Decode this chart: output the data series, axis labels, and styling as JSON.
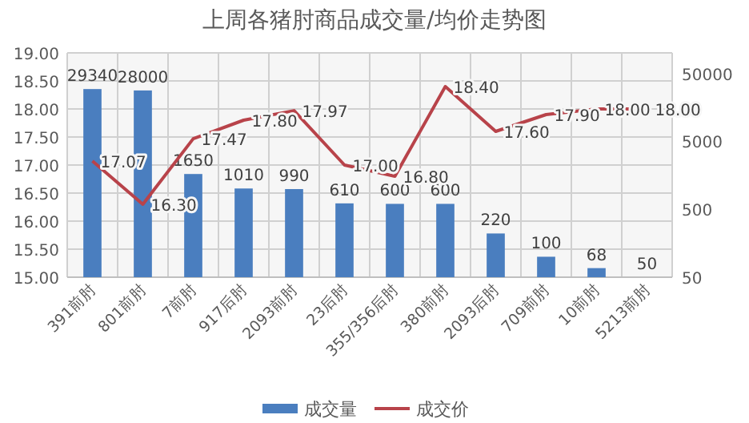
{
  "chart_data": {
    "type": "bar",
    "title": "上周各猪肘商品成交量/均价走势图",
    "categories": [
      "391前肘",
      "801前肘",
      "7前肘",
      "917后肘",
      "2093前肘",
      "23后肘",
      "355/356后肘",
      "380前肘",
      "2093后肘",
      "709前肘",
      "10前肘",
      "5213前肘"
    ],
    "series": [
      {
        "name": "成交量",
        "axis": "y2",
        "color": "#4a7ebf",
        "values": [
          29340,
          28000,
          1650,
          1010,
          990,
          610,
          600,
          600,
          220,
          100,
          68,
          50
        ],
        "value_labels": [
          "29340",
          "28000",
          "1650",
          "1010",
          "990",
          "610",
          "600",
          "600",
          "220",
          "100",
          "68",
          "50"
        ]
      },
      {
        "name": "成交价",
        "type": "line",
        "color": "#b8434a",
        "values": [
          17.07,
          16.3,
          17.47,
          17.8,
          17.97,
          17.0,
          16.8,
          18.4,
          17.6,
          17.9,
          18.0,
          18.0
        ],
        "value_labels": [
          "17.07",
          "16.30",
          "17.47",
          "17.80",
          "17.97",
          "17.00",
          "16.80",
          "18.40",
          "17.60",
          "17.90",
          "18.00",
          "18.00"
        ]
      }
    ],
    "ylim": [
      15,
      19
    ],
    "yticks": [
      {
        "value": 15,
        "label": "15.00"
      },
      {
        "value": 15.5,
        "label": "15.50"
      },
      {
        "value": 16,
        "label": "16.00"
      },
      {
        "value": 16.5,
        "label": "16.50"
      },
      {
        "value": 17,
        "label": "17.00"
      },
      {
        "value": 17.5,
        "label": "17.50"
      },
      {
        "value": 18,
        "label": "18.00"
      },
      {
        "value": 18.5,
        "label": "18.50"
      },
      {
        "value": 19,
        "label": "19.00"
      }
    ],
    "y2lim": [
      50,
      100000
    ],
    "y2ticks": [
      50,
      500,
      5000,
      50000
    ],
    "log": "y2",
    "grid": true,
    "legend": "bottom",
    "marker": "none",
    "line_style": "solid"
  }
}
